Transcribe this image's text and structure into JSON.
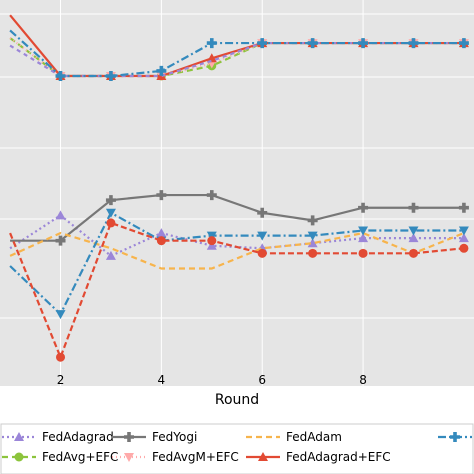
{
  "chart_data": {
    "type": "line",
    "title": "",
    "xlabel": "Round",
    "ylabel": "",
    "xlim": [
      0.8,
      10.2
    ],
    "ylim": [
      0,
      1
    ],
    "x_ticks": [
      2,
      4,
      6,
      8
    ],
    "grid": true,
    "legend_position": "bottom",
    "background": "#e5e5e5",
    "x": [
      1,
      2,
      3,
      4,
      5,
      6,
      7,
      8,
      9,
      10
    ],
    "series": [
      {
        "name": "FedAdagrad",
        "color": "#9b86d8",
        "dash": "2,3",
        "marker": "triangle-up",
        "values": [
          0.52,
          0.65,
          0.49,
          0.58,
          0.53,
          0.52,
          0.54,
          0.56,
          0.56,
          0.56
        ]
      },
      {
        "name": "FedYogi",
        "color": "#777777",
        "dash": "",
        "marker": "plus",
        "values": [
          0.55,
          0.55,
          0.71,
          0.73,
          0.73,
          0.66,
          0.63,
          0.68,
          0.68,
          0.68
        ]
      },
      {
        "name": "FedAdam",
        "color": "#f7b44c",
        "dash": "6,4",
        "marker": "none",
        "values": [
          0.49,
          0.58,
          0.52,
          0.44,
          0.44,
          0.52,
          0.54,
          0.58,
          0.5,
          0.58
        ]
      },
      {
        "name": "FedAvg+EFC",
        "color": "#8cc43c",
        "dash": "6,4",
        "marker": "circle",
        "values": [
          1.35,
          1.2,
          1.2,
          1.2,
          1.24,
          1.33,
          1.33,
          1.33,
          1.33,
          1.33
        ]
      },
      {
        "name": "FedAvgM+EFC",
        "color": "#ffaaaa",
        "dash": "1,3",
        "marker": "triangle-down",
        "values": [
          1.35,
          1.2,
          1.2,
          1.2,
          1.25,
          1.33,
          1.33,
          1.33,
          1.33,
          1.33
        ]
      },
      {
        "name": "FedAdagrad+EFC",
        "color": "#e24a33",
        "dash": "",
        "marker": "triangle-up",
        "values": [
          1.44,
          1.2,
          1.2,
          1.2,
          1.27,
          1.33,
          1.33,
          1.33,
          1.33,
          1.33
        ]
      },
      {
        "name": "",
        "color": "#9b86d8",
        "dash": "4,4",
        "marker": "none",
        "values": [
          1.32,
          1.2,
          1.2,
          1.2,
          1.26,
          1.33,
          1.33,
          1.33,
          1.33,
          1.33
        ]
      },
      {
        "name": "",
        "color": "#348abd",
        "dash": "8,3,2,3",
        "marker": "plus",
        "values": [
          1.38,
          1.2,
          1.2,
          1.22,
          1.33,
          1.33,
          1.33,
          1.33,
          1.33,
          1.33
        ]
      },
      {
        "name": "",
        "color": "#348abd",
        "dash": "8,3,2,3",
        "marker": "triangle-down",
        "values": [
          0.45,
          0.26,
          0.66,
          0.55,
          0.57,
          0.57,
          0.57,
          0.59,
          0.59,
          0.59
        ]
      },
      {
        "name": "",
        "color": "#e24a33",
        "dash": "6,3",
        "marker": "circle",
        "values": [
          0.58,
          0.09,
          0.62,
          0.55,
          0.55,
          0.5,
          0.5,
          0.5,
          0.5,
          0.52
        ]
      }
    ]
  }
}
